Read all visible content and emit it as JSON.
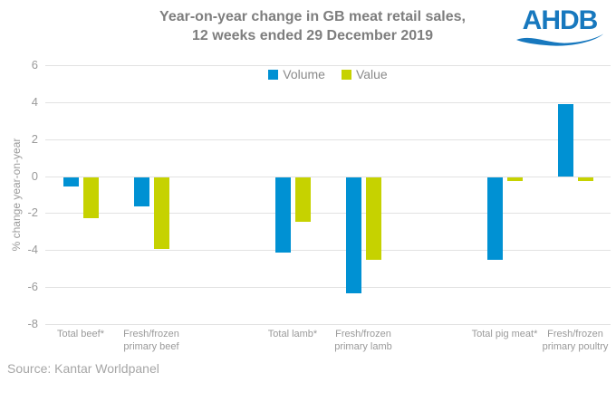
{
  "header": {
    "title_line1": "Year-on-year change in GB meat retail sales,",
    "title_line2": "12 weeks ended 29 December 2019",
    "logo_text": "AHDB"
  },
  "footer": {
    "source": "Source: Kantar Worldpanel"
  },
  "colors": {
    "logo_blue": "#1778BE",
    "title_gray": "#7E7E7E",
    "axis_text_gray": "#9A9A9A",
    "gridline": "#E2E2E2",
    "volume_blue": "#0091D3",
    "value_green": "#C6D200"
  },
  "chart_data": {
    "type": "bar",
    "title": "Year-on-year change in GB meat retail sales, 12 weeks ended 29 December 2019",
    "xlabel": "",
    "ylabel": "% change year-on-year",
    "ylim": [
      -8,
      6
    ],
    "yticks": [
      6,
      4,
      2,
      0,
      -2,
      -4,
      -6,
      -8
    ],
    "grid": true,
    "legend_position": "top-center",
    "categories": [
      "Total beef*",
      "Fresh/frozen primary beef",
      "Total lamb*",
      "Fresh/frozen primary lamb",
      "Total pig meat*",
      "Fresh/frozen primary poultry"
    ],
    "category_label_lines": [
      [
        "Total beef*"
      ],
      [
        "Fresh/frozen",
        "primary beef"
      ],
      [
        "Total lamb*"
      ],
      [
        "Fresh/frozen",
        "primary lamb"
      ],
      [
        "Total pig meat*"
      ],
      [
        "Fresh/frozen",
        "primary poultry"
      ]
    ],
    "series": [
      {
        "name": "Volume",
        "color": "#0091D3",
        "values": [
          -0.5,
          -1.6,
          -4.1,
          -6.3,
          -4.5,
          3.9
        ]
      },
      {
        "name": "Value",
        "color": "#C6D200",
        "values": [
          -2.2,
          -3.9,
          -2.4,
          -4.5,
          -0.2,
          -0.2
        ]
      }
    ],
    "group_slots": [
      0,
      1,
      3,
      4,
      6,
      7
    ],
    "total_slots": 8
  }
}
